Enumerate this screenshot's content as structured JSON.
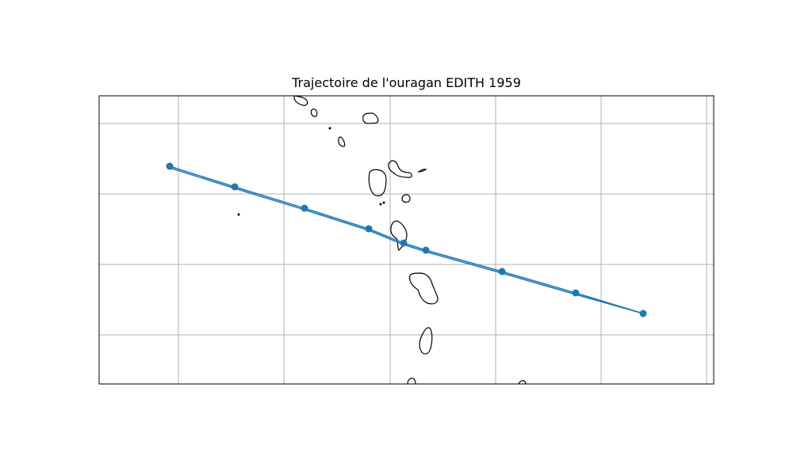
{
  "title": "Trajectoire de l'ouragan EDITH 1959",
  "map": {
    "grid": true,
    "grid_color": "#b0b0b0",
    "coastline_color": "#000000",
    "track_color": "#1f77b4"
  }
}
